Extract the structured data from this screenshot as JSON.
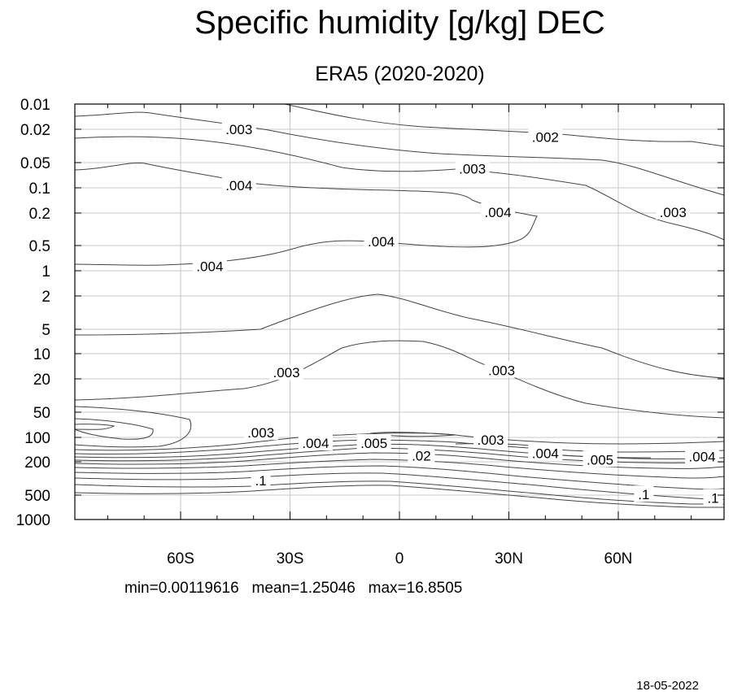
{
  "chart_data": {
    "type": "contour",
    "title": "Specific humidity [g/kg] DEC",
    "subtitle": "ERA5 (2020-2020)",
    "x_ticks": [
      "60S",
      "30S",
      "0",
      "30N",
      "60N"
    ],
    "x_tick_values": [
      -60,
      -30,
      0,
      30,
      60
    ],
    "x_range": [
      -89,
      89
    ],
    "y_ticks": [
      "0.01",
      "0.02",
      "0.05",
      "0.1",
      "0.2",
      "0.5",
      "1",
      "2",
      "5",
      "10",
      "20",
      "50",
      "100",
      "200",
      "500",
      "1000"
    ],
    "y_tick_values": [
      0.01,
      0.02,
      0.05,
      0.1,
      0.2,
      0.5,
      1,
      2,
      5,
      10,
      20,
      50,
      100,
      200,
      500,
      1000
    ],
    "y_scale": "log",
    "y_reversed": true,
    "y_range": [
      0.01,
      1000
    ],
    "grid": true,
    "contour_labels": [
      {
        "text": ".003",
        "lat": -44,
        "p": 0.02
      },
      {
        "text": ".002",
        "lat": 40,
        "p": 0.025
      },
      {
        "text": ".003",
        "lat": 20,
        "p": 0.06
      },
      {
        "text": ".004",
        "lat": -44,
        "p": 0.095
      },
      {
        "text": ".004",
        "lat": 27,
        "p": 0.2
      },
      {
        "text": ".003",
        "lat": 75,
        "p": 0.2
      },
      {
        "text": ".004",
        "lat": -5,
        "p": 0.45
      },
      {
        "text": ".004",
        "lat": -52,
        "p": 0.9
      },
      {
        "text": ".003",
        "lat": 28,
        "p": 16
      },
      {
        "text": ".003",
        "lat": -31,
        "p": 17
      },
      {
        "text": ".003",
        "lat": -38,
        "p": 90
      },
      {
        "text": ".004",
        "lat": -23,
        "p": 120
      },
      {
        "text": ".005",
        "lat": -7,
        "p": 120
      },
      {
        "text": ".003",
        "lat": 25,
        "p": 110
      },
      {
        "text": ".004",
        "lat": 40,
        "p": 160
      },
      {
        "text": ".005",
        "lat": 55,
        "p": 190
      },
      {
        "text": ".004",
        "lat": 83,
        "p": 175
      },
      {
        "text": ".02",
        "lat": 6,
        "p": 170
      },
      {
        "text": ".1",
        "lat": -38,
        "p": 340
      },
      {
        "text": ".1",
        "lat": 67,
        "p": 500
      },
      {
        "text": ".1",
        "lat": 86,
        "p": 550
      }
    ]
  },
  "stats_text": "min=0.00119616   mean=1.25046   max=16.8505",
  "date_text": "18-05-2022"
}
